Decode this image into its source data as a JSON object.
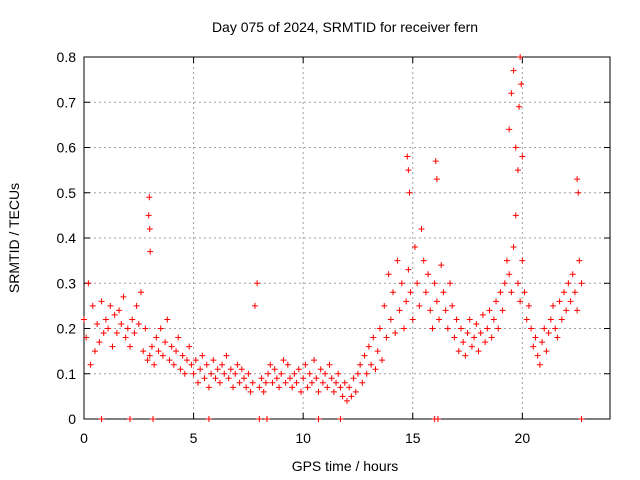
{
  "chart_data": {
    "type": "scatter",
    "title": "Day 075 of 2024, SRMTID for receiver fern",
    "xlabel": "GPS time / hours",
    "ylabel": "SRMTID / TECUs",
    "xlim": [
      0,
      24
    ],
    "ylim": [
      0,
      0.8
    ],
    "x_ticks": [
      0,
      5,
      10,
      15,
      20
    ],
    "x_tick_labels": [
      "0",
      "5",
      "10",
      "15",
      "20"
    ],
    "y_ticks": [
      0,
      0.1,
      0.2,
      0.3,
      0.4,
      0.5,
      0.6,
      0.7,
      0.8
    ],
    "y_tick_labels": [
      "0",
      "0.1",
      "0.2",
      "0.3",
      "0.4",
      "0.5",
      "0.6",
      "0.7",
      "0.8"
    ],
    "grid": true,
    "marker": "plus",
    "color": "#ff0000",
    "series": [
      {
        "name": "SRMTID",
        "x": [
          0.0,
          0.1,
          0.2,
          0.3,
          0.4,
          0.5,
          0.6,
          0.7,
          0.8,
          0.9,
          1.0,
          1.1,
          1.2,
          1.3,
          1.4,
          1.5,
          1.6,
          1.7,
          1.8,
          1.9,
          2.0,
          2.1,
          2.2,
          2.3,
          2.4,
          2.5,
          2.6,
          2.7,
          2.8,
          2.9,
          3.0,
          3.1,
          3.2,
          3.3,
          3.4,
          3.5,
          3.6,
          3.7,
          3.8,
          3.9,
          4.0,
          4.1,
          4.2,
          4.3,
          4.4,
          4.5,
          4.6,
          4.7,
          4.8,
          4.9,
          5.0,
          5.1,
          5.2,
          5.3,
          5.4,
          5.5,
          5.6,
          5.7,
          5.8,
          5.9,
          6.0,
          6.1,
          6.2,
          6.3,
          6.4,
          6.5,
          6.6,
          6.7,
          6.8,
          6.9,
          7.0,
          7.1,
          7.2,
          7.3,
          7.4,
          7.5,
          7.6,
          7.7,
          7.8,
          7.9,
          8.0,
          8.1,
          8.2,
          8.3,
          8.4,
          8.5,
          8.6,
          8.7,
          8.8,
          8.9,
          9.0,
          9.1,
          9.2,
          9.3,
          9.4,
          9.5,
          9.6,
          9.7,
          9.8,
          9.9,
          10.0,
          10.1,
          10.2,
          10.3,
          10.4,
          10.5,
          10.6,
          10.7,
          10.8,
          10.9,
          11.0,
          11.1,
          11.2,
          11.3,
          11.4,
          11.5,
          11.6,
          11.7,
          11.8,
          11.9,
          12.0,
          12.1,
          12.2,
          12.3,
          12.4,
          12.5,
          12.6,
          12.7,
          12.8,
          12.9,
          13.0,
          13.1,
          13.2,
          13.3,
          13.4,
          13.5,
          13.6,
          13.7,
          13.8,
          13.9,
          14.0,
          14.1,
          14.2,
          14.3,
          14.4,
          14.5,
          14.6,
          14.7,
          14.8,
          14.9,
          15.0,
          15.1,
          15.2,
          15.3,
          15.4,
          15.5,
          15.6,
          15.7,
          15.8,
          15.9,
          16.0,
          16.1,
          16.2,
          16.3,
          16.4,
          16.5,
          16.6,
          16.7,
          16.8,
          16.9,
          17.0,
          17.1,
          17.2,
          17.3,
          17.4,
          17.5,
          17.6,
          17.7,
          17.8,
          17.9,
          18.0,
          18.1,
          18.2,
          18.3,
          18.4,
          18.5,
          18.6,
          18.7,
          18.8,
          18.9,
          19.0,
          19.1,
          19.2,
          19.3,
          19.4,
          19.5,
          19.6,
          19.7,
          19.8,
          19.9,
          20.0,
          20.1,
          20.2,
          20.3,
          20.4,
          20.5,
          20.6,
          20.7,
          20.8,
          20.9,
          21.0,
          21.1,
          21.2,
          21.3,
          21.4,
          21.5,
          21.6,
          21.7,
          21.8,
          21.9,
          22.0,
          22.1,
          22.2,
          22.3,
          22.4,
          22.5,
          22.6,
          22.7,
          2.95,
          2.98,
          3.0,
          3.02,
          19.4,
          19.5,
          19.6,
          19.7,
          19.8,
          19.85,
          19.9,
          19.95,
          20.0,
          14.75,
          14.8,
          14.85,
          16.05,
          16.1,
          22.5,
          22.55,
          0.8,
          2.1,
          3.15,
          5.7,
          8.0,
          8.35,
          10.7,
          11.7,
          16.0,
          16.15,
          22.7
        ],
        "y": [
          0.22,
          0.18,
          0.3,
          0.12,
          0.25,
          0.15,
          0.21,
          0.17,
          0.26,
          0.19,
          0.22,
          0.2,
          0.25,
          0.16,
          0.23,
          0.19,
          0.24,
          0.21,
          0.27,
          0.18,
          0.2,
          0.16,
          0.22,
          0.19,
          0.25,
          0.21,
          0.28,
          0.15,
          0.2,
          0.13,
          0.14,
          0.16,
          0.12,
          0.18,
          0.15,
          0.2,
          0.14,
          0.17,
          0.22,
          0.13,
          0.16,
          0.12,
          0.15,
          0.18,
          0.11,
          0.14,
          0.1,
          0.13,
          0.16,
          0.12,
          0.1,
          0.13,
          0.08,
          0.11,
          0.14,
          0.09,
          0.12,
          0.07,
          0.1,
          0.13,
          0.09,
          0.11,
          0.08,
          0.12,
          0.1,
          0.14,
          0.09,
          0.11,
          0.07,
          0.1,
          0.12,
          0.08,
          0.11,
          0.09,
          0.07,
          0.1,
          0.06,
          0.08,
          0.25,
          0.3,
          0.07,
          0.09,
          0.06,
          0.08,
          0.1,
          0.12,
          0.08,
          0.11,
          0.09,
          0.07,
          0.1,
          0.13,
          0.08,
          0.12,
          0.09,
          0.07,
          0.1,
          0.08,
          0.11,
          0.06,
          0.09,
          0.12,
          0.07,
          0.1,
          0.08,
          0.13,
          0.09,
          0.06,
          0.11,
          0.08,
          0.1,
          0.07,
          0.12,
          0.09,
          0.06,
          0.08,
          0.1,
          0.07,
          0.05,
          0.08,
          0.04,
          0.07,
          0.05,
          0.09,
          0.06,
          0.1,
          0.12,
          0.08,
          0.14,
          0.1,
          0.16,
          0.12,
          0.18,
          0.11,
          0.15,
          0.2,
          0.13,
          0.25,
          0.18,
          0.32,
          0.22,
          0.28,
          0.19,
          0.35,
          0.24,
          0.3,
          0.2,
          0.26,
          0.33,
          0.28,
          0.22,
          0.38,
          0.3,
          0.25,
          0.42,
          0.35,
          0.28,
          0.32,
          0.24,
          0.2,
          0.3,
          0.26,
          0.22,
          0.34,
          0.28,
          0.24,
          0.2,
          0.3,
          0.25,
          0.18,
          0.22,
          0.15,
          0.2,
          0.17,
          0.14,
          0.19,
          0.22,
          0.16,
          0.18,
          0.21,
          0.15,
          0.19,
          0.23,
          0.17,
          0.2,
          0.24,
          0.18,
          0.22,
          0.26,
          0.2,
          0.28,
          0.24,
          0.3,
          0.35,
          0.32,
          0.28,
          0.38,
          0.45,
          0.3,
          0.26,
          0.35,
          0.28,
          0.22,
          0.25,
          0.2,
          0.16,
          0.18,
          0.14,
          0.12,
          0.17,
          0.2,
          0.15,
          0.19,
          0.22,
          0.25,
          0.2,
          0.18,
          0.26,
          0.22,
          0.28,
          0.24,
          0.3,
          0.26,
          0.32,
          0.28,
          0.24,
          0.35,
          0.3,
          0.45,
          0.49,
          0.42,
          0.37,
          0.64,
          0.72,
          0.77,
          0.6,
          0.55,
          0.69,
          0.8,
          0.74,
          0.58,
          0.58,
          0.55,
          0.5,
          0.57,
          0.53,
          0.53,
          0.5,
          0.0,
          0.0,
          0.0,
          0.0,
          0.0,
          0.0,
          0.0,
          0.0,
          0.0,
          0.0,
          0.0
        ]
      }
    ]
  }
}
